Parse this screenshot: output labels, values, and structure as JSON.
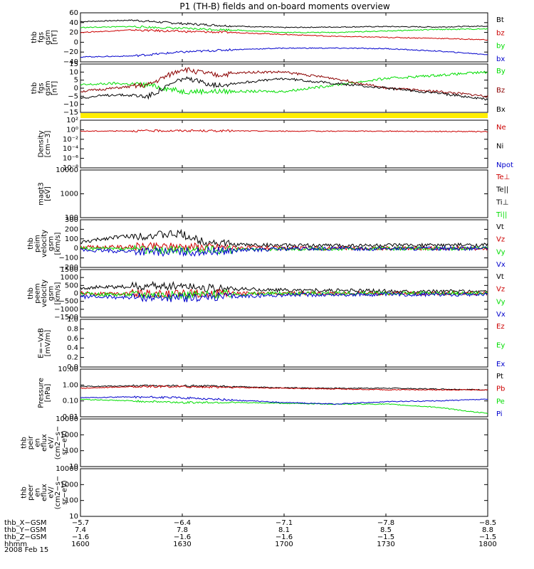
{
  "title": "P1 (TH-B) fields and on-board moments overview",
  "date_label": "2008 Feb 15",
  "colors": {
    "black": "#000000",
    "red": "#cc0000",
    "darkred": "#8b0000",
    "green": "#00dd00",
    "blue": "#0000cc",
    "yellow": "#ffee00"
  },
  "chart_data": [
    {
      "id": "p1",
      "type": "line",
      "ylabel": [
        "thb",
        "fgs",
        "gsm",
        "[nT]"
      ],
      "yticks": [
        "60",
        "40",
        "20",
        "0",
        "−20",
        "−40"
      ],
      "ylim": [
        -40,
        60
      ],
      "log": false,
      "series": [
        {
          "name": "Bt",
          "color": "black",
          "points": [
            [
              1600,
              42
            ],
            [
              1615,
              45
            ],
            [
              1630,
              38
            ],
            [
              1645,
              33
            ],
            [
              1700,
              30
            ],
            [
              1715,
              31
            ],
            [
              1730,
              32
            ],
            [
              1745,
              31
            ],
            [
              1800,
              33
            ]
          ]
        },
        {
          "name": "bz",
          "color": "red",
          "points": [
            [
              1600,
              20
            ],
            [
              1615,
              25
            ],
            [
              1630,
              22
            ],
            [
              1645,
              20
            ],
            [
              1700,
              16
            ],
            [
              1715,
              12
            ],
            [
              1730,
              10
            ],
            [
              1745,
              8
            ],
            [
              1800,
              5
            ]
          ]
        },
        {
          "name": "by",
          "color": "green",
          "points": [
            [
              1600,
              30
            ],
            [
              1615,
              32
            ],
            [
              1630,
              28
            ],
            [
              1645,
              25
            ],
            [
              1700,
              20
            ],
            [
              1715,
              20
            ],
            [
              1730,
              23
            ],
            [
              1745,
              26
            ],
            [
              1800,
              27
            ]
          ]
        },
        {
          "name": "bx",
          "color": "blue",
          "points": [
            [
              1600,
              -30
            ],
            [
              1615,
              -28
            ],
            [
              1630,
              -20
            ],
            [
              1645,
              -15
            ],
            [
              1700,
              -12
            ],
            [
              1715,
              -12
            ],
            [
              1730,
              -13
            ],
            [
              1745,
              -18
            ],
            [
              1800,
              -25
            ]
          ]
        }
      ]
    },
    {
      "id": "p2",
      "type": "line",
      "ylabel": [
        "thb",
        "fgs",
        "gsm",
        "[nT]"
      ],
      "yticks": [
        "15",
        "10",
        "5",
        "0",
        "−5",
        "−10",
        "−15"
      ],
      "ylim": [
        -15,
        15
      ],
      "log": false,
      "series": [
        {
          "name": "By",
          "color": "green",
          "points": [
            [
              1600,
              2
            ],
            [
              1610,
              3
            ],
            [
              1620,
              2
            ],
            [
              1630,
              -2
            ],
            [
              1640,
              -2
            ],
            [
              1650,
              -2
            ],
            [
              1700,
              -2
            ],
            [
              1715,
              2
            ],
            [
              1730,
              6
            ],
            [
              1745,
              8
            ],
            [
              1800,
              10
            ]
          ]
        },
        {
          "name": "Bz",
          "color": "darkred",
          "points": [
            [
              1600,
              -2
            ],
            [
              1610,
              0
            ],
            [
              1620,
              2
            ],
            [
              1630,
              12
            ],
            [
              1640,
              8
            ],
            [
              1650,
              10
            ],
            [
              1700,
              10
            ],
            [
              1715,
              6
            ],
            [
              1730,
              0
            ],
            [
              1745,
              -2
            ],
            [
              1800,
              -5
            ]
          ]
        },
        {
          "name": "Bx",
          "color": "black",
          "points": [
            [
              1600,
              -6
            ],
            [
              1610,
              -4
            ],
            [
              1620,
              -5
            ],
            [
              1630,
              6
            ],
            [
              1640,
              2
            ],
            [
              1650,
              4
            ],
            [
              1700,
              6
            ],
            [
              1715,
              3
            ],
            [
              1730,
              0
            ],
            [
              1745,
              -3
            ],
            [
              1800,
              -7
            ]
          ]
        }
      ]
    },
    {
      "id": "p3",
      "type": "line",
      "ylabel": [
        "Density",
        "[cm−3]"
      ],
      "yticks": [
        "10²",
        "10⁰",
        "10⁻²",
        "10⁻⁴",
        "10⁻⁶",
        "10⁻⁸"
      ],
      "ylim": [
        -8,
        2
      ],
      "log": true,
      "series": [
        {
          "name": "Ne",
          "color": "red",
          "points": [
            [
              1600,
              -0.3
            ],
            [
              1630,
              -0.2
            ],
            [
              1700,
              -0.3
            ],
            [
              1730,
              -0.3
            ],
            [
              1800,
              -0.4
            ]
          ]
        },
        {
          "name": "Ni",
          "color": "black",
          "points": []
        },
        {
          "name": "Npot",
          "color": "blue",
          "points": []
        }
      ]
    },
    {
      "id": "p4",
      "type": "line",
      "ylabel": [
        "magt3",
        "[eV]"
      ],
      "yticks": [
        "10000",
        "1000",
        "100"
      ],
      "ylim": [
        1.7,
        4.4
      ],
      "log": true,
      "series": [
        {
          "name": "Te⊥",
          "color": "red",
          "points": []
        },
        {
          "name": "Te||",
          "color": "black",
          "points": []
        },
        {
          "name": "Ti⊥",
          "color": "black",
          "points": []
        },
        {
          "name": "Ti||",
          "color": "green",
          "points": []
        }
      ]
    },
    {
      "id": "p5",
      "type": "line",
      "ylabel": [
        "thb",
        "peim",
        "velocity",
        "gsm",
        "[km/s]"
      ],
      "yticks": [
        "300",
        "200",
        "100",
        "0",
        "−100",
        "−200"
      ],
      "ylim": [
        -200,
        300
      ],
      "log": false,
      "series": [
        {
          "name": "Vt",
          "color": "black",
          "points": [
            [
              1600,
              60
            ],
            [
              1610,
              120
            ],
            [
              1630,
              150
            ],
            [
              1635,
              80
            ],
            [
              1645,
              40
            ],
            [
              1700,
              30
            ],
            [
              1730,
              30
            ],
            [
              1800,
              35
            ]
          ]
        },
        {
          "name": "Vz",
          "color": "red",
          "points": [
            [
              1600,
              10
            ],
            [
              1630,
              20
            ],
            [
              1700,
              0
            ],
            [
              1800,
              0
            ]
          ]
        },
        {
          "name": "Vy",
          "color": "green",
          "points": [
            [
              1600,
              0
            ],
            [
              1630,
              -20
            ],
            [
              1700,
              -5
            ],
            [
              1800,
              0
            ]
          ]
        },
        {
          "name": "Vx",
          "color": "blue",
          "points": [
            [
              1600,
              -20
            ],
            [
              1630,
              -40
            ],
            [
              1700,
              -5
            ],
            [
              1800,
              0
            ]
          ]
        }
      ]
    },
    {
      "id": "p6",
      "type": "line",
      "ylabel": [
        "thb",
        "peem",
        "velocity",
        "gsm",
        "[km/s]"
      ],
      "yticks": [
        "1500",
        "1000",
        "500",
        "0",
        "−500",
        "−1000",
        "−1500"
      ],
      "ylim": [
        -1500,
        1500
      ],
      "log": false,
      "series": [
        {
          "name": "Vt",
          "color": "black",
          "points": [
            [
              1600,
              350
            ],
            [
              1630,
              500
            ],
            [
              1640,
              300
            ],
            [
              1700,
              200
            ],
            [
              1730,
              150
            ],
            [
              1800,
              120
            ]
          ]
        },
        {
          "name": "Vz",
          "color": "red",
          "points": [
            [
              1600,
              0
            ],
            [
              1630,
              0
            ],
            [
              1700,
              0
            ],
            [
              1800,
              0
            ]
          ]
        },
        {
          "name": "Vy",
          "color": "green",
          "points": [
            [
              1600,
              -50
            ],
            [
              1630,
              -100
            ],
            [
              1700,
              0
            ],
            [
              1800,
              0
            ]
          ]
        },
        {
          "name": "Vx",
          "color": "blue",
          "points": [
            [
              1600,
              -200
            ],
            [
              1630,
              -300
            ],
            [
              1700,
              -100
            ],
            [
              1800,
              -50
            ]
          ]
        }
      ]
    },
    {
      "id": "p7",
      "type": "line",
      "ylabel": [
        "E=−VxB",
        "[mV/m]"
      ],
      "yticks": [
        "1.0",
        "0.8",
        "0.6",
        "0.4",
        "0.2",
        "0.0"
      ],
      "ylim": [
        0,
        1
      ],
      "log": false,
      "series": [
        {
          "name": "Ez",
          "color": "red",
          "points": []
        },
        {
          "name": "Ey",
          "color": "green",
          "points": []
        },
        {
          "name": "Ex",
          "color": "blue",
          "points": []
        }
      ]
    },
    {
      "id": "p8",
      "type": "line",
      "ylabel": [
        "Pressure",
        "[nPa]"
      ],
      "yticks": [
        "10.00",
        "1.00",
        "0.10",
        "0.01"
      ],
      "ylim": [
        -2,
        1
      ],
      "log": true,
      "series": [
        {
          "name": "Pt",
          "color": "black",
          "points": [
            [
              1600,
              -0.1
            ],
            [
              1615,
              -0.05
            ],
            [
              1630,
              -0.05
            ],
            [
              1645,
              -0.1
            ],
            [
              1700,
              -0.18
            ],
            [
              1715,
              -0.2
            ],
            [
              1730,
              -0.2
            ],
            [
              1745,
              -0.25
            ],
            [
              1800,
              -0.3
            ]
          ]
        },
        {
          "name": "Pb",
          "color": "red",
          "points": [
            [
              1600,
              -0.2
            ],
            [
              1615,
              -0.1
            ],
            [
              1630,
              -0.1
            ],
            [
              1645,
              -0.15
            ],
            [
              1700,
              -0.2
            ],
            [
              1715,
              -0.25
            ],
            [
              1730,
              -0.3
            ],
            [
              1745,
              -0.3
            ],
            [
              1800,
              -0.3
            ]
          ]
        },
        {
          "name": "Pe",
          "color": "green",
          "points": [
            [
              1600,
              -0.9
            ],
            [
              1615,
              -1.0
            ],
            [
              1630,
              -1.1
            ],
            [
              1645,
              -1.1
            ],
            [
              1700,
              -1.15
            ],
            [
              1715,
              -1.2
            ],
            [
              1730,
              -1.2
            ],
            [
              1745,
              -1.4
            ],
            [
              1800,
              -1.8
            ]
          ]
        },
        {
          "name": "Pi",
          "color": "blue",
          "points": [
            [
              1600,
              -0.8
            ],
            [
              1615,
              -0.75
            ],
            [
              1630,
              -0.8
            ],
            [
              1645,
              -0.95
            ],
            [
              1700,
              -1.1
            ],
            [
              1715,
              -1.2
            ],
            [
              1730,
              -1.05
            ],
            [
              1745,
              -1.0
            ],
            [
              1800,
              -0.9
            ]
          ]
        }
      ]
    },
    {
      "id": "p9",
      "type": "line",
      "ylabel": [
        "thb",
        "peir",
        "en",
        "eflux",
        "eV/",
        "(cm2−s−",
        "sr−eV)"
      ],
      "yticks": [
        "10000",
        "1000",
        "100",
        "10"
      ],
      "ylim": [
        1,
        4
      ],
      "log": true,
      "series": []
    },
    {
      "id": "p10",
      "type": "line",
      "ylabel": [
        "thb",
        "peer",
        "en",
        "eflux",
        "eV/",
        "(cm2−s−",
        "sr−eV)"
      ],
      "yticks": [
        "10000",
        "1000",
        "100",
        "10"
      ],
      "ylim": [
        1,
        4
      ],
      "log": true,
      "series": []
    }
  ],
  "xaxis": {
    "range": [
      1600,
      1800
    ],
    "ticks": [
      1600,
      1630,
      1700,
      1730,
      1800
    ],
    "rows": [
      {
        "label": "thb_X−GSM",
        "values": [
          "−5.7",
          "−6.4",
          "−7.1",
          "−7.8",
          "−8.5"
        ]
      },
      {
        "label": "thb_Y−GSM",
        "values": [
          "7.4",
          "7.8",
          "8.1",
          "8.5",
          "8.8"
        ]
      },
      {
        "label": "thb_Z−GSM",
        "values": [
          "−1.6",
          "−1.6",
          "−1.6",
          "−1.5",
          "−1.5"
        ]
      },
      {
        "label": "hhmm",
        "values": [
          "1600",
          "1630",
          "1700",
          "1730",
          "1800"
        ]
      }
    ]
  }
}
